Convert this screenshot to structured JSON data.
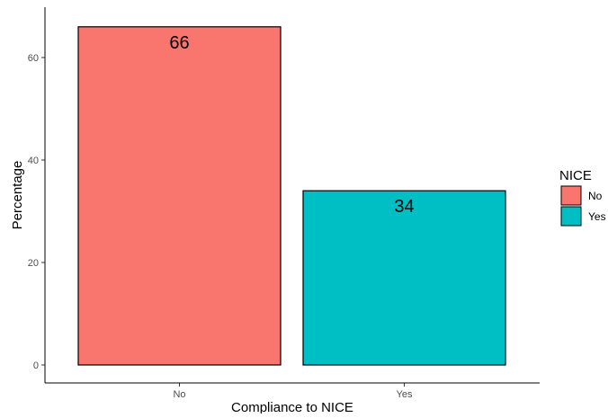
{
  "chart_data": {
    "type": "bar",
    "categories": [
      "No",
      "Yes"
    ],
    "values": [
      66,
      34
    ],
    "data_labels": [
      "66",
      "34"
    ],
    "xlabel": "Compliance to NICE",
    "ylabel": "Percentage",
    "ylim": [
      0,
      68
    ],
    "yticks": [
      0,
      20,
      40,
      60
    ],
    "ytick_labels": [
      "0",
      "20",
      "40",
      "60"
    ],
    "grid": false,
    "legend": {
      "title": "NICE",
      "placement": "right",
      "entries": [
        {
          "label": "No",
          "color": "#F8766D"
        },
        {
          "label": "Yes",
          "color": "#00BFC4"
        }
      ]
    },
    "bar_colors": [
      "#F8766D",
      "#00BFC4"
    ]
  }
}
